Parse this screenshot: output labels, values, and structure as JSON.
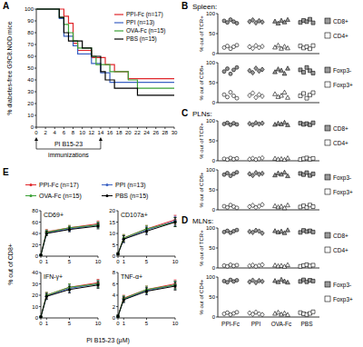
{
  "chart_data": [
    {
      "type": "step",
      "panel": "A",
      "ylabel": "% diabetes-free G9C8.NOD mice",
      "legend": "top-right",
      "annotation": {
        "lines": [
          "PI B15-23",
          "immunizations"
        ],
        "x": [
          0,
          14
        ]
      },
      "x": [
        0,
        4,
        5,
        6,
        7,
        8,
        9,
        10,
        12,
        13,
        14,
        15,
        16,
        17,
        20,
        22,
        30
      ],
      "xlim": [
        0,
        30
      ],
      "xticks": [
        0,
        2,
        4,
        6,
        8,
        10,
        12,
        14,
        16,
        18,
        20,
        22,
        24,
        26,
        28,
        30
      ],
      "ylim": [
        0,
        100
      ],
      "yticks": [
        0,
        10,
        20,
        30,
        40,
        50,
        60,
        70,
        80,
        90,
        100
      ],
      "series": [
        {
          "name": "PPI-Fc (n=17)",
          "color": "#e0262b",
          "values": [
            100,
            100,
            100,
            94,
            88,
            71,
            65,
            65,
            59,
            59,
            59,
            53,
            53,
            47,
            41,
            41,
            41
          ]
        },
        {
          "name": "PPI (n=13)",
          "color": "#3b62c4",
          "values": [
            100,
            100,
            92,
            77,
            77,
            69,
            62,
            62,
            54,
            54,
            46,
            46,
            38,
            38,
            38,
            38,
            38
          ]
        },
        {
          "name": "OVA-Fc (n=15)",
          "color": "#3aa035",
          "values": [
            100,
            100,
            93,
            87,
            80,
            73,
            67,
            67,
            60,
            53,
            53,
            53,
            47,
            47,
            40,
            33,
            33
          ]
        },
        {
          "name": "PBS (n=15)",
          "color": "#000000",
          "values": [
            100,
            100,
            93,
            80,
            73,
            73,
            73,
            67,
            60,
            60,
            47,
            40,
            40,
            33,
            33,
            27,
            27
          ]
        }
      ]
    },
    {
      "type": "strip",
      "panel": "B",
      "title": "Spleen:",
      "ylabel": "% out of TCR+",
      "legend": "right",
      "tick_labels": "y",
      "categories": [
        "PPI-Fc",
        "PPI",
        "OVA-Fc",
        "PBS"
      ],
      "ylim": [
        0,
        100
      ],
      "yticks": [
        0,
        50,
        100
      ],
      "series": [
        {
          "name": "CD8+",
          "color": "#9a9a9a",
          "values": [
            [
              82,
              78,
              85,
              80,
              76
            ],
            [
              80,
              84,
              77,
              82,
              79
            ],
            [
              81,
              76,
              83,
              79,
              85
            ],
            [
              78,
              83,
              80,
              86,
              77
            ]
          ]
        },
        {
          "name": "CD4+",
          "color": "#ffffff",
          "values": [
            [
              15,
              19,
              12,
              17,
              21
            ],
            [
              17,
              13,
              20,
              15,
              18
            ],
            [
              16,
              21,
              13,
              18,
              14
            ],
            [
              19,
              14,
              17,
              12,
              20
            ]
          ]
        }
      ]
    },
    {
      "type": "strip",
      "ylabel": "% out of CD8+",
      "legend": "right",
      "tick_labels": "y",
      "categories": [
        "PPI-Fc",
        "PPI",
        "OVA-Fc",
        "PBS"
      ],
      "ylim": [
        0,
        100
      ],
      "yticks": [
        0,
        50,
        100
      ],
      "series": [
        {
          "name": "Foxp3-",
          "color": "#9a9a9a",
          "values": [
            [
              78,
              85,
              72,
              82,
              88
            ],
            [
              80,
              75,
              86,
              79,
              83
            ],
            [
              77,
              84,
              81,
              73,
              86
            ],
            [
              82,
              76,
              88,
              80,
              74
            ]
          ]
        },
        {
          "name": "Foxp3+",
          "color": "#ffffff",
          "values": [
            [
              20,
              14,
              26,
              17,
              11
            ],
            [
              18,
              24,
              13,
              20,
              16
            ],
            [
              22,
              15,
              18,
              26,
              13
            ],
            [
              17,
              23,
              11,
              19,
              25
            ]
          ]
        }
      ]
    },
    {
      "type": "strip",
      "panel": "C",
      "title": "PLNs:",
      "ylabel": "% out of TCR+",
      "legend": "right",
      "tick_labels": "y",
      "categories": [
        "PPI-Fc",
        "PPI",
        "OVA-Fc",
        "PBS"
      ],
      "ylim": [
        0,
        100
      ],
      "yticks": [
        0,
        50,
        100
      ],
      "series": [
        {
          "name": "CD8+",
          "color": "#9a9a9a",
          "values": [
            [
              92,
              95,
              90,
              94,
              91
            ],
            [
              93,
              90,
              95,
              92,
              94
            ],
            [
              91,
              94,
              92,
              96,
              90
            ],
            [
              94,
              91,
              93,
              90,
              95
            ]
          ]
        },
        {
          "name": "CD4+",
          "color": "#ffffff",
          "values": [
            [
              5,
              3,
              7,
              4,
              6
            ],
            [
              4,
              6,
              3,
              5,
              7
            ],
            [
              6,
              4,
              5,
              3,
              7
            ],
            [
              3,
              5,
              7,
              4,
              6
            ]
          ]
        }
      ]
    },
    {
      "type": "strip",
      "ylabel": "% out of CD8+",
      "legend": "right",
      "tick_labels": "y",
      "categories": [
        "PPI-Fc",
        "PPI",
        "OVA-Fc",
        "PBS"
      ],
      "ylim": [
        0,
        100
      ],
      "yticks": [
        0,
        50,
        100
      ],
      "series": [
        {
          "name": "Foxp3-",
          "color": "#9a9a9a",
          "values": [
            [
              88,
              92,
              85,
              90,
              94
            ],
            [
              90,
              86,
              93,
              89,
              91
            ],
            [
              87,
              92,
              89,
              94,
              85
            ],
            [
              91,
              88,
              93,
              86,
              90
            ]
          ]
        },
        {
          "name": "Foxp3+",
          "color": "#ffffff",
          "values": [
            [
              9,
              6,
              12,
              8,
              5
            ],
            [
              8,
              11,
              6,
              9,
              13
            ],
            [
              10,
              7,
              9,
              5,
              12
            ],
            [
              7,
              10,
              6,
              12,
              8
            ]
          ]
        }
      ]
    },
    {
      "type": "strip",
      "panel": "D",
      "title": "MLNs:",
      "ylabel": "% out of TCR+",
      "legend": "right",
      "tick_labels": "y",
      "categories": [
        "PPI-Fc",
        "PPI",
        "OVA-Fc",
        "PBS"
      ],
      "ylim": [
        0,
        100
      ],
      "yticks": [
        0,
        50,
        100
      ],
      "series": [
        {
          "name": "CD8+",
          "color": "#9a9a9a",
          "values": [
            [
              90,
              93,
              88,
              92,
              95
            ],
            [
              91,
              89,
              94,
              92,
              87
            ],
            [
              93,
              90,
              92,
              88,
              95
            ],
            [
              89,
              94,
              91,
              93,
              90
            ]
          ]
        },
        {
          "name": "CD4+",
          "color": "#ffffff",
          "values": [
            [
              6,
              4,
              8,
              5,
              7
            ],
            [
              5,
              7,
              4,
              6,
              8
            ],
            [
              7,
              5,
              6,
              4,
              8
            ],
            [
              4,
              6,
              8,
              5,
              7
            ]
          ]
        }
      ]
    },
    {
      "type": "strip",
      "ylabel": "% out of CD4+",
      "legend": "right",
      "categories": [
        "PPI-Fc",
        "PPI",
        "OVA-Fc",
        "PBS"
      ],
      "ylim": [
        0,
        100
      ],
      "yticks": [
        0,
        50,
        100
      ],
      "series": [
        {
          "name": "Foxp3-",
          "color": "#9a9a9a",
          "values": [
            [
              90,
              87,
              93,
              89,
              92
            ],
            [
              88,
              92,
              86,
              91,
              89
            ],
            [
              91,
              88,
              94,
              90,
              87
            ],
            [
              89,
              93,
              88,
              92,
              90
            ]
          ]
        },
        {
          "name": "Foxp3+",
          "color": "#ffffff",
          "values": [
            [
              8,
              11,
              6,
              9,
              12
            ],
            [
              10,
              7,
              12,
              8,
              6
            ],
            [
              9,
              12,
              7,
              10,
              6
            ],
            [
              11,
              8,
              6,
              9,
              13
            ]
          ]
        }
      ]
    },
    {
      "type": "line",
      "panel": "E",
      "title": "CD69+",
      "ylabel": "% out of CD8+",
      "legend": "top",
      "marker": "circle",
      "x": [
        0,
        1,
        5,
        10
      ],
      "xlim": [
        0,
        10
      ],
      "xticks": [
        0,
        1,
        5,
        10
      ],
      "ylim": [
        0,
        80
      ],
      "yticks": [
        0,
        20,
        40,
        60,
        80
      ],
      "series": [
        {
          "name": "PPI-Fc (n=17)",
          "color": "#e0262b",
          "values": [
            2,
            43,
            50,
            57
          ],
          "errors": [
            1,
            4,
            4,
            5
          ]
        },
        {
          "name": "PPI (n=13)",
          "color": "#3b62c4",
          "values": [
            2,
            41,
            48,
            55
          ],
          "errors": [
            1,
            4,
            4,
            5
          ]
        },
        {
          "name": "OVA-Fc (n=15)",
          "color": "#3aa035",
          "values": [
            2,
            42,
            50,
            55
          ],
          "errors": [
            1,
            4,
            4,
            5
          ]
        },
        {
          "name": "PBS (n=15)",
          "color": "#000000",
          "values": [
            2,
            40,
            47,
            53
          ],
          "errors": [
            1,
            4,
            4,
            5
          ]
        }
      ]
    },
    {
      "type": "line",
      "title": "CD107a+",
      "marker": "circle",
      "x": [
        0,
        1,
        5,
        10
      ],
      "xlim": [
        0,
        10
      ],
      "xticks": [
        0,
        1,
        5,
        10
      ],
      "ylim": [
        0,
        20
      ],
      "yticks": [
        0,
        5,
        10,
        15,
        20
      ],
      "series": [
        {
          "color": "#e0262b",
          "values": [
            1,
            8,
            12,
            16
          ],
          "errors": [
            0.5,
            1.5,
            1.5,
            2
          ]
        },
        {
          "color": "#3b62c4",
          "values": [
            1,
            7.5,
            11.5,
            15.5
          ],
          "errors": [
            0.5,
            1.5,
            1.5,
            2
          ]
        },
        {
          "color": "#3aa035",
          "values": [
            1,
            8,
            12,
            15
          ],
          "errors": [
            0.5,
            1.5,
            1.5,
            2
          ]
        },
        {
          "color": "#000000",
          "values": [
            1,
            7.5,
            11,
            15
          ],
          "errors": [
            0.5,
            1.5,
            1.5,
            2
          ]
        }
      ]
    },
    {
      "type": "line",
      "title": "IFN-γ+",
      "marker": "circle",
      "x": [
        0,
        1,
        5,
        10
      ],
      "xlim": [
        0,
        10
      ],
      "xticks": [
        0,
        1,
        5,
        10
      ],
      "ylim": [
        0,
        40
      ],
      "yticks": [
        0,
        10,
        20,
        30,
        40
      ],
      "series": [
        {
          "color": "#e0262b",
          "values": [
            1,
            20,
            27,
            31
          ],
          "errors": [
            0.5,
            2.5,
            3,
            3
          ]
        },
        {
          "color": "#3b62c4",
          "values": [
            1,
            19,
            26,
            30
          ],
          "errors": [
            0.5,
            2.5,
            3,
            3
          ]
        },
        {
          "color": "#3aa035",
          "values": [
            1,
            20,
            27,
            30
          ],
          "errors": [
            0.5,
            2.5,
            3,
            3
          ]
        },
        {
          "color": "#000000",
          "values": [
            1,
            19,
            25,
            29
          ],
          "errors": [
            0.5,
            2.5,
            3,
            3
          ]
        }
      ]
    },
    {
      "type": "line",
      "title": "TNF-α+",
      "xlabel": "PI B15-23 (μM)",
      "marker": "circle",
      "x": [
        0,
        1,
        5,
        10
      ],
      "xlim": [
        0,
        10
      ],
      "xticks": [
        0,
        1,
        5,
        10
      ],
      "ylim": [
        0,
        8
      ],
      "yticks": [
        0,
        2,
        4,
        6,
        8
      ],
      "series": [
        {
          "color": "#e0262b",
          "values": [
            0.3,
            3.5,
            5,
            6
          ],
          "errors": [
            0.2,
            0.5,
            0.6,
            0.7
          ]
        },
        {
          "color": "#3b62c4",
          "values": [
            0.3,
            3.3,
            4.8,
            5.8
          ],
          "errors": [
            0.2,
            0.5,
            0.6,
            0.7
          ]
        },
        {
          "color": "#3aa035",
          "values": [
            0.3,
            3.4,
            5,
            5.8
          ],
          "errors": [
            0.2,
            0.5,
            0.6,
            0.7
          ]
        },
        {
          "color": "#000000",
          "values": [
            0.3,
            3.2,
            4.7,
            5.6
          ],
          "errors": [
            0.2,
            0.5,
            0.6,
            0.7
          ]
        }
      ]
    }
  ]
}
